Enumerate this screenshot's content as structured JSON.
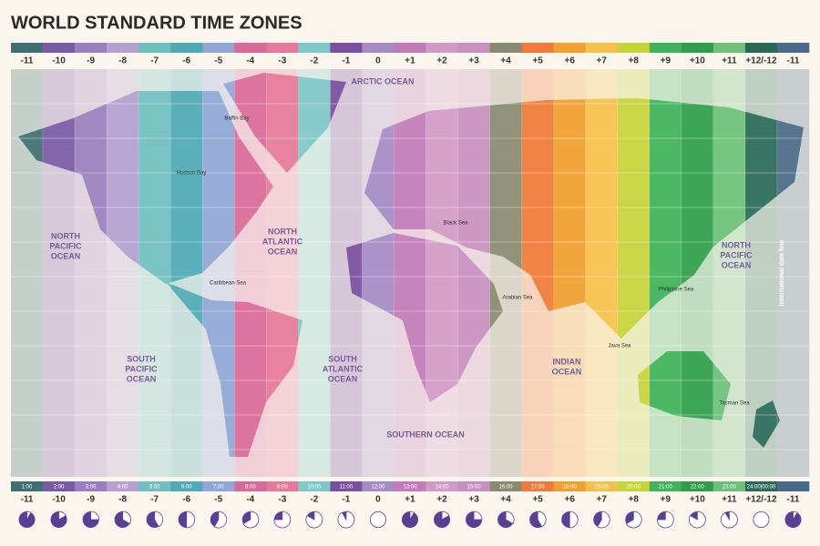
{
  "title": "WORLD STANDARD TIME ZONES",
  "zones": [
    {
      "offset": "-11",
      "time": "1:00",
      "color": "#3f6f73"
    },
    {
      "offset": "-10",
      "time": "2:00",
      "color": "#7a5aa6"
    },
    {
      "offset": "-9",
      "time": "3:00",
      "color": "#9a7fc0"
    },
    {
      "offset": "-8",
      "time": "4:00",
      "color": "#b5a0d0"
    },
    {
      "offset": "-7",
      "time": "5:00",
      "color": "#6fbfbf"
    },
    {
      "offset": "-6",
      "time": "6:00",
      "color": "#4faab5"
    },
    {
      "offset": "-5",
      "time": "7:00",
      "color": "#8fa6d6"
    },
    {
      "offset": "-4",
      "time": "8:00",
      "color": "#d86a9a"
    },
    {
      "offset": "-3",
      "time": "9:00",
      "color": "#e6799a"
    },
    {
      "offset": "-2",
      "time": "10:00",
      "color": "#7ec8c8"
    },
    {
      "offset": "-1",
      "time": "11:00",
      "color": "#7a4ea0"
    },
    {
      "offset": "0",
      "time": "12:00",
      "color": "#a58cc7"
    },
    {
      "offset": "+1",
      "time": "13:00",
      "color": "#c27bb8"
    },
    {
      "offset": "+2",
      "time": "14:00",
      "color": "#d19ac7"
    },
    {
      "offset": "+3",
      "time": "15:00",
      "color": "#c890c0"
    },
    {
      "offset": "+4",
      "time": "16:00",
      "color": "#8a8a70"
    },
    {
      "offset": "+5",
      "time": "17:00",
      "color": "#f07a3a"
    },
    {
      "offset": "+6",
      "time": "18:00",
      "color": "#f0a030"
    },
    {
      "offset": "+7",
      "time": "19:00",
      "color": "#f6c14a"
    },
    {
      "offset": "+8",
      "time": "20:00",
      "color": "#c6d43a"
    },
    {
      "offset": "+9",
      "time": "21:00",
      "color": "#3fb35a"
    },
    {
      "offset": "+10",
      "time": "22:00",
      "color": "#2f9e4a"
    },
    {
      "offset": "+11",
      "time": "23:00",
      "color": "#6cc07a"
    },
    {
      "offset": "+12/-12",
      "time": "24:00|00:00",
      "color": "#2a6a5a"
    },
    {
      "offset": "-11",
      "time": null,
      "color": "#4a6a8a"
    }
  ],
  "oceans": [
    {
      "lines": [
        "ARCTIC OCEAN"
      ]
    },
    {
      "lines": [
        "NORTH",
        "PACIFIC",
        "OCEAN"
      ]
    },
    {
      "lines": [
        "NORTH",
        "ATLANTIC",
        "OCEAN"
      ]
    },
    {
      "lines": [
        "SOUTH",
        "PACIFIC",
        "OCEAN"
      ]
    },
    {
      "lines": [
        "SOUTH",
        "ATLANTIC",
        "OCEAN"
      ]
    },
    {
      "lines": [
        "INDIAN",
        "OCEAN"
      ]
    },
    {
      "lines": [
        "SOUTHERN OCEAN"
      ]
    },
    {
      "lines": [
        "NORTH",
        "PACIFIC",
        "OCEAN"
      ]
    }
  ],
  "seas": [
    "Caribbean Sea",
    "Black Sea",
    "Arabian Sea",
    "Java Sea",
    "Philippine Sea",
    "Tasman Sea",
    "Hudson Bay",
    "Baffin Bay"
  ],
  "date_line": "International date line"
}
